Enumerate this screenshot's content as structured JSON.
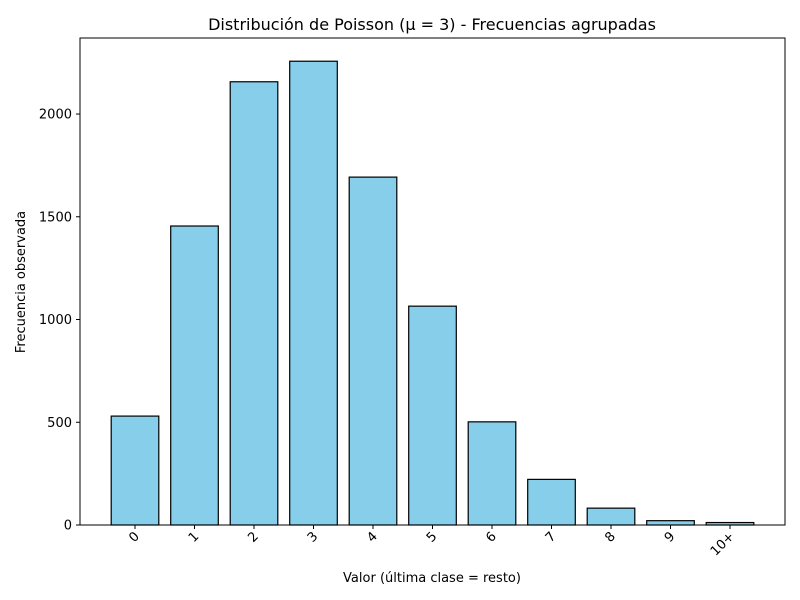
{
  "chart_data": {
    "type": "bar",
    "title": "Distribución de Poisson (μ = 3) - Frecuencias agrupadas",
    "xlabel": "Valor (última clase = resto)",
    "ylabel": "Frecuencia observada",
    "categories": [
      "0",
      "1",
      "2",
      "3",
      "4",
      "5",
      "6",
      "7",
      "8",
      "9",
      "10+"
    ],
    "values": [
      530,
      1455,
      2157,
      2257,
      1693,
      1065,
      502,
      222,
      82,
      21,
      12
    ],
    "ylim": [
      0,
      2370
    ],
    "yticks": [
      0,
      500,
      1000,
      1500,
      2000
    ],
    "bar_color": "#87ceeb",
    "bar_edge_color": "#000000",
    "xtick_rotation": 45,
    "grid": false,
    "legend": false
  }
}
